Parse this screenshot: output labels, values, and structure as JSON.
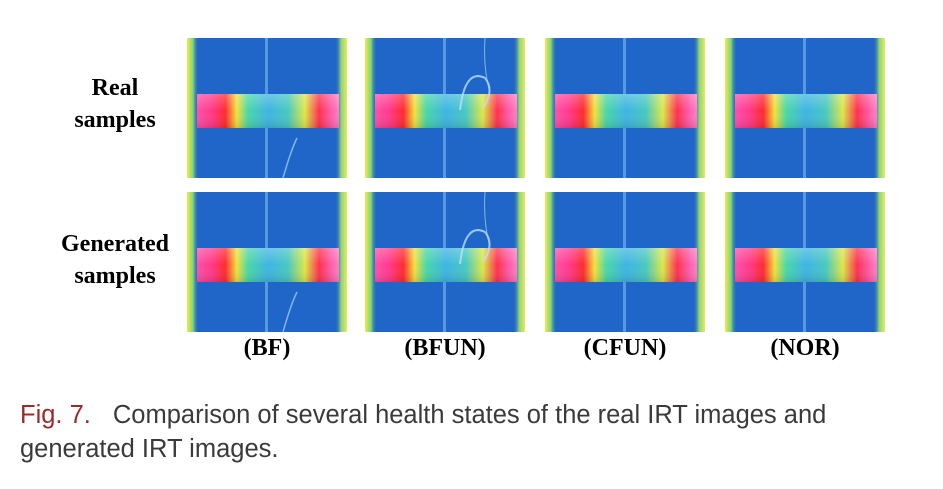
{
  "rows": [
    {
      "line1": "Real",
      "line2": "samples"
    },
    {
      "line1": "Generated",
      "line2": "samples"
    }
  ],
  "columns": [
    "(BF)",
    "(BFUN)",
    "(CFUN)",
    "(NOR)"
  ],
  "caption": {
    "fig_number": "Fig. 7.",
    "text": "Comparison of several health states of the real IRT images and generated IRT images."
  },
  "colors": {
    "background_blue": "#1b60c4",
    "hot_pink": "#ff3fa0",
    "hot_red": "#ff2030",
    "warm_yellow": "#f0f040",
    "caption_fig": "#9b2b2b",
    "caption_text": "#3a3a3a"
  }
}
